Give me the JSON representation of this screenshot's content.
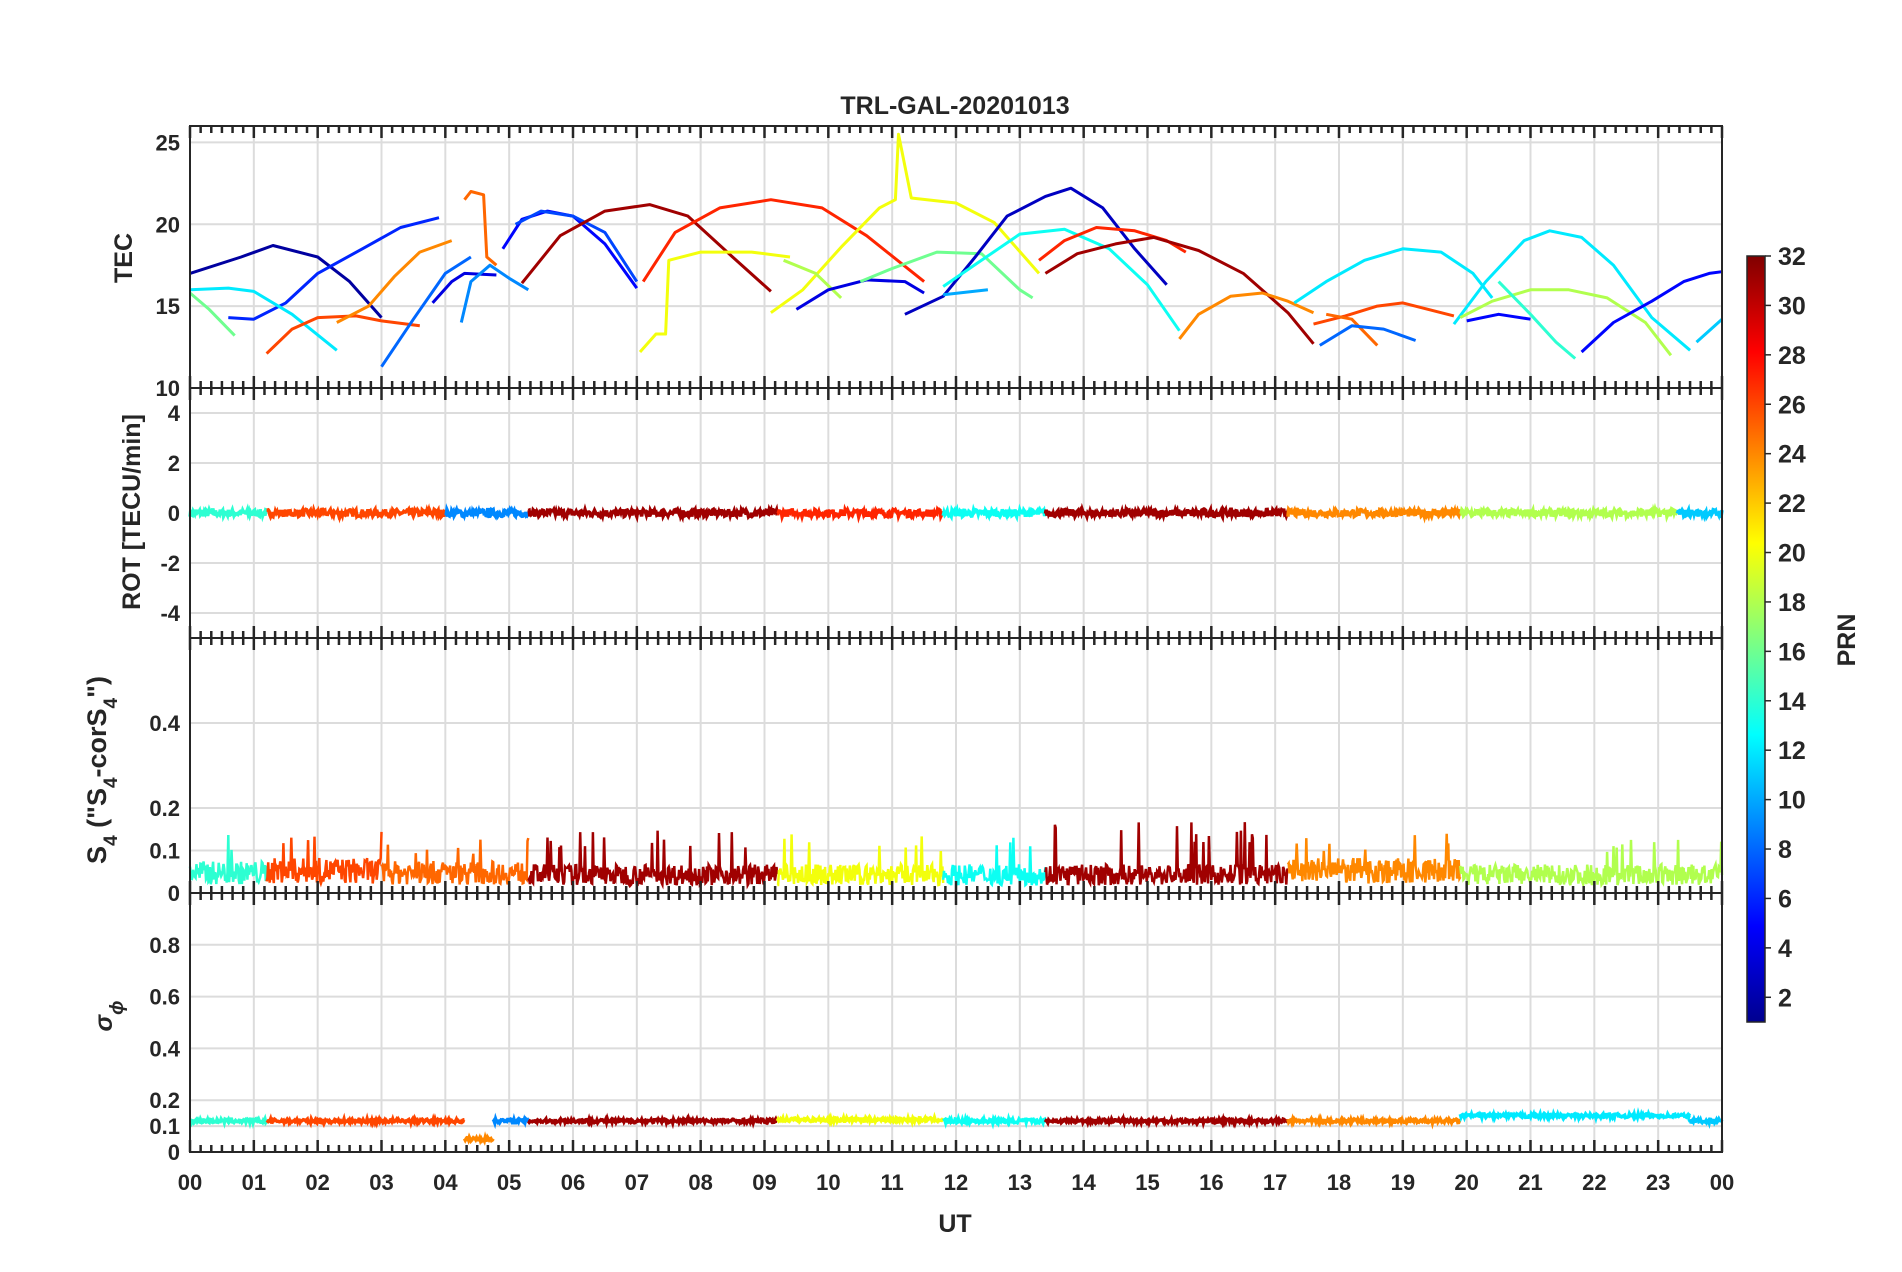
{
  "chart_data": [
    {
      "type": "line",
      "title": "TRL-GAL-20201013",
      "ylabel": "TEC",
      "ylim": [
        10,
        26
      ],
      "yticks": [
        10,
        15,
        20,
        25
      ],
      "grid": true,
      "note": "multiple satellite arcs, colored by PRN",
      "series": [
        {
          "prn": 2,
          "x": [
            0.0,
            0.8,
            1.3,
            2.0,
            2.5,
            3.0
          ],
          "y": [
            17.0,
            18.0,
            18.7,
            18.0,
            16.5,
            14.3
          ]
        },
        {
          "prn": 6,
          "x": [
            0.6,
            1.0,
            1.5,
            2.0,
            2.7,
            3.3,
            3.9
          ],
          "y": [
            14.3,
            14.2,
            15.2,
            17.0,
            18.5,
            19.8,
            20.4
          ]
        },
        {
          "prn": 12,
          "x": [
            0.0,
            0.6,
            1.0,
            1.6,
            2.3
          ],
          "y": [
            16.0,
            16.1,
            15.9,
            14.5,
            12.3
          ]
        },
        {
          "prn": 16,
          "x": [
            0.0,
            0.3,
            0.7
          ],
          "y": [
            15.8,
            14.8,
            13.2
          ]
        },
        {
          "prn": 26,
          "x": [
            1.2,
            1.6,
            2.0,
            2.6,
            3.0,
            3.6
          ],
          "y": [
            12.1,
            13.6,
            14.3,
            14.4,
            14.1,
            13.8
          ]
        },
        {
          "prn": 24,
          "x": [
            2.3,
            2.8,
            3.2,
            3.6,
            4.1
          ],
          "y": [
            14.0,
            15.0,
            16.8,
            18.3,
            19.0
          ]
        },
        {
          "prn": 8,
          "x": [
            3.0,
            3.5,
            4.0,
            4.4
          ],
          "y": [
            11.3,
            14.2,
            17.0,
            18.0
          ]
        },
        {
          "prn": 4,
          "x": [
            3.8,
            4.1,
            4.3,
            4.8
          ],
          "y": [
            15.2,
            16.5,
            17.0,
            16.9
          ]
        },
        {
          "prn": 9,
          "x": [
            4.25,
            4.4,
            4.7,
            5.0,
            5.3
          ],
          "y": [
            14.0,
            16.5,
            17.5,
            16.7,
            16.0
          ]
        },
        {
          "prn": 25,
          "x": [
            4.3,
            4.4,
            4.6,
            4.65,
            4.8
          ],
          "y": [
            21.5,
            22.0,
            21.8,
            18.0,
            17.5
          ]
        },
        {
          "prn": 5,
          "x": [
            4.9,
            5.2,
            5.6,
            6.0,
            6.5,
            7.0
          ],
          "y": [
            18.5,
            20.3,
            20.8,
            20.5,
            18.8,
            16.1
          ]
        },
        {
          "prn": 7,
          "x": [
            5.1,
            5.5,
            6.0,
            6.5,
            7.0
          ],
          "y": [
            20.0,
            20.8,
            20.5,
            19.5,
            16.5
          ]
        },
        {
          "prn": 31,
          "x": [
            5.2,
            5.8,
            6.5,
            7.2,
            7.8,
            8.5,
            9.1
          ],
          "y": [
            16.4,
            19.3,
            20.8,
            21.2,
            20.5,
            18.0,
            15.9
          ]
        },
        {
          "prn": 27,
          "x": [
            7.1,
            7.6,
            8.3,
            9.1,
            9.9,
            10.6,
            11.5
          ],
          "y": [
            16.5,
            19.5,
            21.0,
            21.5,
            21.0,
            19.3,
            16.5
          ]
        },
        {
          "prn": 20,
          "x": [
            7.05,
            7.3,
            7.45,
            7.5,
            8.0,
            8.8,
            9.4
          ],
          "y": [
            12.2,
            13.3,
            13.3,
            17.8,
            18.3,
            18.3,
            18.0
          ]
        },
        {
          "prn": 20,
          "x": [
            9.1,
            9.6,
            10.2,
            10.8,
            11.05,
            11.1,
            11.3,
            12.0,
            12.6,
            13.3
          ],
          "y": [
            14.6,
            16.0,
            18.6,
            21.0,
            21.5,
            25.5,
            21.6,
            21.3,
            20.1,
            17.0
          ]
        },
        {
          "prn": 18,
          "x": [
            9.3,
            9.8,
            10.2
          ],
          "y": [
            17.8,
            17.0,
            15.5
          ]
        },
        {
          "prn": 4,
          "x": [
            9.5,
            10.0,
            10.6,
            11.2,
            11.5
          ],
          "y": [
            14.8,
            16.0,
            16.6,
            16.5,
            15.8
          ]
        },
        {
          "prn": 16,
          "x": [
            10.5,
            11.0,
            11.7,
            12.4,
            13.0,
            13.2
          ],
          "y": [
            16.5,
            17.3,
            18.3,
            18.2,
            16.0,
            15.5
          ]
        },
        {
          "prn": 3,
          "x": [
            11.2,
            11.8,
            12.3,
            12.8,
            13.4,
            13.8,
            14.3,
            14.8,
            15.3
          ],
          "y": [
            14.5,
            15.6,
            18.0,
            20.5,
            21.7,
            22.2,
            21.0,
            18.5,
            16.3
          ]
        },
        {
          "prn": 10,
          "x": [
            11.8,
            12.5
          ],
          "y": [
            15.7,
            16.0
          ]
        },
        {
          "prn": 13,
          "x": [
            11.8,
            12.4,
            13.0,
            13.7,
            14.4,
            15.0,
            15.5
          ],
          "y": [
            16.2,
            17.8,
            19.4,
            19.7,
            18.5,
            16.3,
            13.5
          ]
        },
        {
          "prn": 27,
          "x": [
            13.3,
            13.7,
            14.2,
            14.8,
            15.3,
            15.6
          ],
          "y": [
            17.8,
            19.0,
            19.8,
            19.6,
            19.0,
            18.3
          ]
        },
        {
          "prn": 31,
          "x": [
            13.4,
            13.9,
            14.5,
            15.1,
            15.8,
            16.5,
            17.2,
            17.6
          ],
          "y": [
            17.0,
            18.2,
            18.8,
            19.2,
            18.4,
            17.0,
            14.6,
            12.7
          ]
        },
        {
          "prn": 24,
          "x": [
            15.5,
            15.8,
            16.3,
            16.8,
            17.2,
            17.6
          ],
          "y": [
            13.0,
            14.5,
            15.6,
            15.8,
            15.3,
            14.6
          ]
        },
        {
          "prn": 26,
          "x": [
            17.6,
            18.1,
            18.6,
            19.0,
            19.4,
            19.8
          ],
          "y": [
            13.9,
            14.4,
            15.0,
            15.2,
            14.8,
            14.4
          ]
        },
        {
          "prn": 25,
          "x": [
            17.8,
            18.2,
            18.6
          ],
          "y": [
            14.5,
            14.2,
            12.6
          ]
        },
        {
          "prn": 8,
          "x": [
            17.7,
            18.2,
            18.7,
            19.2
          ],
          "y": [
            12.6,
            13.8,
            13.6,
            12.9
          ]
        },
        {
          "prn": 12,
          "x": [
            17.3,
            17.8,
            18.4,
            19.0,
            19.6,
            20.1,
            20.4
          ],
          "y": [
            15.2,
            16.5,
            17.8,
            18.5,
            18.3,
            17.0,
            15.5
          ]
        },
        {
          "prn": 12,
          "x": [
            19.8,
            20.3,
            20.9,
            21.3,
            21.8,
            22.3,
            22.9,
            23.5
          ],
          "y": [
            13.9,
            16.5,
            19.0,
            19.6,
            19.2,
            17.5,
            14.3,
            12.3
          ]
        },
        {
          "prn": 18,
          "x": [
            19.9,
            20.4,
            21.0,
            21.6,
            22.2,
            22.8,
            23.2
          ],
          "y": [
            14.3,
            15.3,
            16.0,
            16.0,
            15.5,
            14.0,
            12.0
          ]
        },
        {
          "prn": 5,
          "x": [
            20.0,
            20.5,
            21.0
          ],
          "y": [
            14.1,
            14.5,
            14.2
          ]
        },
        {
          "prn": 14,
          "x": [
            20.5,
            21.0,
            21.4,
            21.7
          ],
          "y": [
            16.5,
            14.5,
            12.8,
            11.8
          ]
        },
        {
          "prn": 5,
          "x": [
            21.8,
            22.3,
            22.9,
            23.4,
            23.8,
            24.0
          ],
          "y": [
            12.2,
            14.0,
            15.3,
            16.5,
            17.0,
            17.1
          ]
        },
        {
          "prn": 11,
          "x": [
            23.6,
            24.0
          ],
          "y": [
            12.8,
            14.2
          ]
        }
      ]
    },
    {
      "type": "line",
      "ylabel": "ROT [TECU/min]",
      "ylim": [
        -5,
        5
      ],
      "yticks": [
        -4,
        -2,
        0,
        2,
        4
      ],
      "grid": true,
      "note": "rate of TEC values stay within about ±0.2 TECU/min around 0",
      "segments": [
        {
          "prn": 14,
          "x": [
            0,
            1.2
          ]
        },
        {
          "prn": 26,
          "x": [
            1.2,
            4.0
          ]
        },
        {
          "prn": 9,
          "x": [
            4.0,
            5.3
          ]
        },
        {
          "prn": 31,
          "x": [
            5.3,
            9.2
          ]
        },
        {
          "prn": 27,
          "x": [
            9.2,
            11.8
          ]
        },
        {
          "prn": 13,
          "x": [
            11.8,
            13.4
          ]
        },
        {
          "prn": 31,
          "x": [
            13.4,
            17.2
          ]
        },
        {
          "prn": 24,
          "x": [
            17.2,
            19.9
          ]
        },
        {
          "prn": 18,
          "x": [
            19.9,
            23.3
          ]
        },
        {
          "prn": 11,
          "x": [
            23.3,
            24.0
          ]
        }
      ]
    },
    {
      "type": "line",
      "ylabel": "S4 (\"S4-corS4\")",
      "ylim": [
        0,
        0.6
      ],
      "yticks": [
        0,
        0.1,
        0.2,
        0.4
      ],
      "grid": true,
      "note": "noisy S4 traces, typically 0.02–0.1, max spikes ~0.17 near 17 UT",
      "segments": [
        {
          "prn": 14,
          "x": [
            0,
            1.2
          ],
          "mean": 0.05,
          "peak": 0.14
        },
        {
          "prn": 26,
          "x": [
            1.2,
            3.0
          ],
          "mean": 0.055,
          "peak": 0.15
        },
        {
          "prn": 25,
          "x": [
            3.0,
            5.3
          ],
          "mean": 0.05,
          "peak": 0.13
        },
        {
          "prn": 31,
          "x": [
            5.3,
            9.2
          ],
          "mean": 0.045,
          "peak": 0.15
        },
        {
          "prn": 20,
          "x": [
            9.2,
            11.8
          ],
          "mean": 0.045,
          "peak": 0.14
        },
        {
          "prn": 13,
          "x": [
            11.8,
            13.4
          ],
          "mean": 0.045,
          "peak": 0.13
        },
        {
          "prn": 31,
          "x": [
            13.4,
            17.2
          ],
          "mean": 0.045,
          "peak": 0.17
        },
        {
          "prn": 24,
          "x": [
            17.2,
            19.9
          ],
          "mean": 0.055,
          "peak": 0.14
        },
        {
          "prn": 18,
          "x": [
            19.9,
            24.0
          ],
          "mean": 0.045,
          "peak": 0.13
        }
      ]
    },
    {
      "type": "line",
      "ylabel": "σφ",
      "ylim": [
        0,
        1.0
      ],
      "yticks": [
        0,
        0.1,
        0.2,
        0.4,
        0.6,
        0.8
      ],
      "grid": true,
      "note": "sigma-phi near 0.12 throughout, small drop to ~0.05 near 4.5 UT",
      "segments": [
        {
          "prn": 14,
          "x": [
            0,
            1.2
          ],
          "level": 0.12
        },
        {
          "prn": 26,
          "x": [
            1.2,
            4.3
          ],
          "level": 0.12
        },
        {
          "prn": 24,
          "x": [
            4.3,
            4.75
          ],
          "level": 0.05
        },
        {
          "prn": 9,
          "x": [
            4.75,
            5.3
          ],
          "level": 0.12
        },
        {
          "prn": 31,
          "x": [
            5.3,
            9.2
          ],
          "level": 0.12
        },
        {
          "prn": 20,
          "x": [
            9.2,
            11.8
          ],
          "level": 0.125
        },
        {
          "prn": 13,
          "x": [
            11.8,
            13.4
          ],
          "level": 0.12
        },
        {
          "prn": 31,
          "x": [
            13.4,
            17.2
          ],
          "level": 0.12
        },
        {
          "prn": 24,
          "x": [
            17.2,
            19.9
          ],
          "level": 0.12
        },
        {
          "prn": 12,
          "x": [
            19.9,
            23.5
          ],
          "level": 0.14
        },
        {
          "prn": 11,
          "x": [
            23.5,
            24.0
          ],
          "level": 0.12
        }
      ]
    }
  ],
  "xaxis": {
    "label": "UT",
    "range": [
      0,
      24
    ],
    "tick_labels": [
      "00",
      "01",
      "02",
      "03",
      "04",
      "05",
      "06",
      "07",
      "08",
      "09",
      "10",
      "11",
      "12",
      "13",
      "14",
      "15",
      "16",
      "17",
      "18",
      "19",
      "20",
      "21",
      "22",
      "23",
      "00"
    ]
  },
  "colorbar": {
    "label": "PRN",
    "range": [
      1,
      32
    ],
    "tick_labels": [
      "2",
      "4",
      "6",
      "8",
      "10",
      "12",
      "14",
      "16",
      "18",
      "20",
      "22",
      "24",
      "26",
      "28",
      "30",
      "32"
    ],
    "colormap": "jet"
  },
  "colors": {
    "axis": "#262626",
    "grid": "#dcdcdc"
  }
}
